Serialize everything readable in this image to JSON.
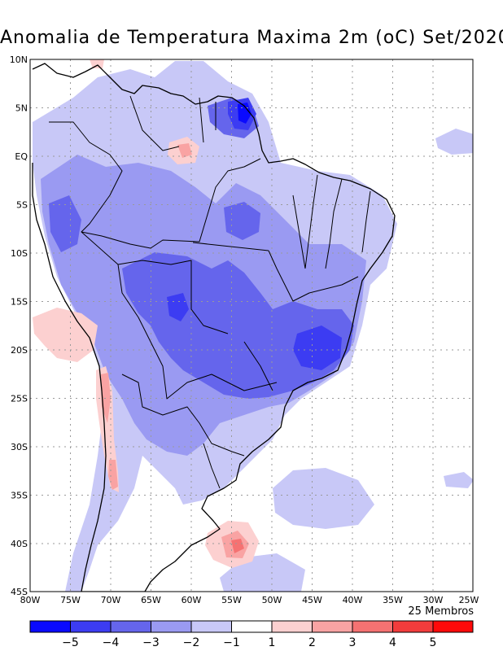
{
  "title": "Anomalia de Temperatura Maxima 2m (oC) Set/2020",
  "members_note": "25 Membros",
  "lat_labels": [
    "10N",
    "5N",
    "EQ",
    "5S",
    "10S",
    "15S",
    "20S",
    "25S",
    "30S",
    "35S",
    "40S",
    "45S"
  ],
  "lon_labels": [
    "80W",
    "75W",
    "70W",
    "65W",
    "60W",
    "55W",
    "50W",
    "45W",
    "40W",
    "35W",
    "30W",
    "25W"
  ],
  "colorbar": {
    "labels": [
      "−5",
      "−4",
      "−3",
      "−2",
      "−1",
      "1",
      "2",
      "3",
      "4",
      "5"
    ],
    "colors": [
      "#0a0aff",
      "#3c3cf2",
      "#6565ec",
      "#9a9af2",
      "#c8c8f7",
      "#ffffff",
      "#fcd0d0",
      "#f9a3a3",
      "#f57272",
      "#f23c3c",
      "#ff0a0a"
    ]
  },
  "colors": {
    "c1": "#c8c8f7",
    "c2": "#9a9af2",
    "c3": "#6565ec",
    "c4": "#3c3cf2",
    "c5": "#0a0aff",
    "w1": "#fcd0d0",
    "w2": "#f9a3a3",
    "w3": "#f57272",
    "w4": "#f23c3c"
  }
}
